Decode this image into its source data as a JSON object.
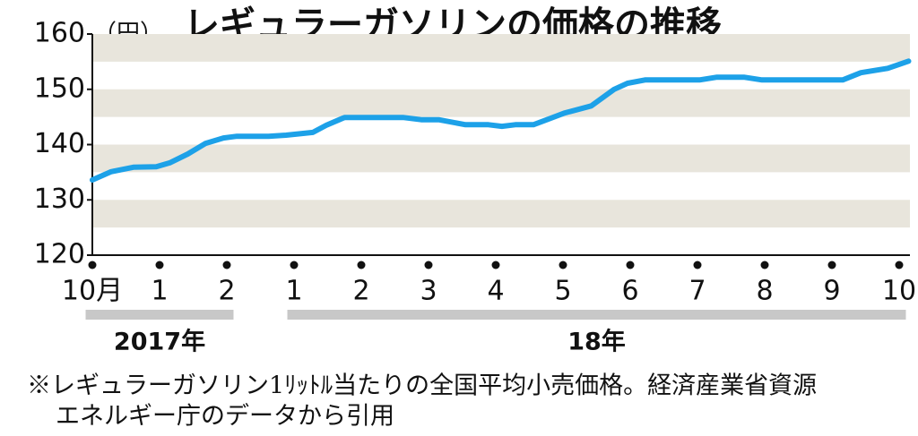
{
  "chart_data": {
    "type": "line",
    "title": "レギュラーガソリンの価格の推移",
    "y_unit": "（円）",
    "x": [
      0,
      0.28,
      0.61,
      0.95,
      1.15,
      1.42,
      1.68,
      1.95,
      2.15,
      2.62,
      2.88,
      3.28,
      3.48,
      3.75,
      4.09,
      4.62,
      4.89,
      5.15,
      5.55,
      5.89,
      6.09,
      6.29,
      6.56,
      6.76,
      7.02,
      7.42,
      7.76,
      7.96,
      8.22,
      9.03,
      9.29,
      9.69,
      9.96,
      11.16,
      11.43,
      11.83,
      12.14
    ],
    "series": [
      {
        "name": "レギュラーガソリン",
        "color": "#1da1e8",
        "values": [
          133.6,
          135.1,
          135.9,
          136.0,
          136.7,
          138.3,
          140.2,
          141.2,
          141.5,
          141.5,
          141.7,
          142.2,
          143.5,
          144.9,
          144.9,
          144.9,
          144.5,
          144.5,
          143.6,
          143.6,
          143.3,
          143.6,
          143.6,
          144.5,
          145.7,
          147.0,
          150.0,
          151.1,
          151.7,
          151.7,
          152.2,
          152.2,
          151.7,
          151.7,
          153.0,
          153.8,
          155.1
        ]
      }
    ],
    "xlim": [
      0,
      12.16
    ],
    "xticks": [
      {
        "value": 0,
        "label": "10月"
      },
      1,
      2,
      {
        "value": 3,
        "label": "1"
      },
      {
        "value": 4,
        "label": "2"
      },
      {
        "value": 5,
        "label": "3"
      },
      {
        "value": 6,
        "label": "4"
      },
      {
        "value": 7,
        "label": "5"
      },
      {
        "value": 8,
        "label": "6"
      },
      {
        "value": 9,
        "label": "7"
      },
      {
        "value": 10,
        "label": "8"
      },
      {
        "value": 11,
        "label": "9"
      },
      {
        "value": 12,
        "label": "10"
      }
    ],
    "x_groups": [
      {
        "label": "2017年",
        "from": 0,
        "to": 2
      },
      {
        "label": "18年",
        "from": 3,
        "to": 12
      }
    ],
    "ylim": [
      120,
      160
    ],
    "yticks": [
      120,
      130,
      140,
      150,
      160
    ],
    "stripes": true,
    "stripe_color": "#e8e5dc",
    "note": [
      "※レギュラーガソリン1ﾘｯﾄﾙ当たりの全国平均小売価格。経済産業省資源",
      "エネルギー庁のデータから引用"
    ]
  }
}
